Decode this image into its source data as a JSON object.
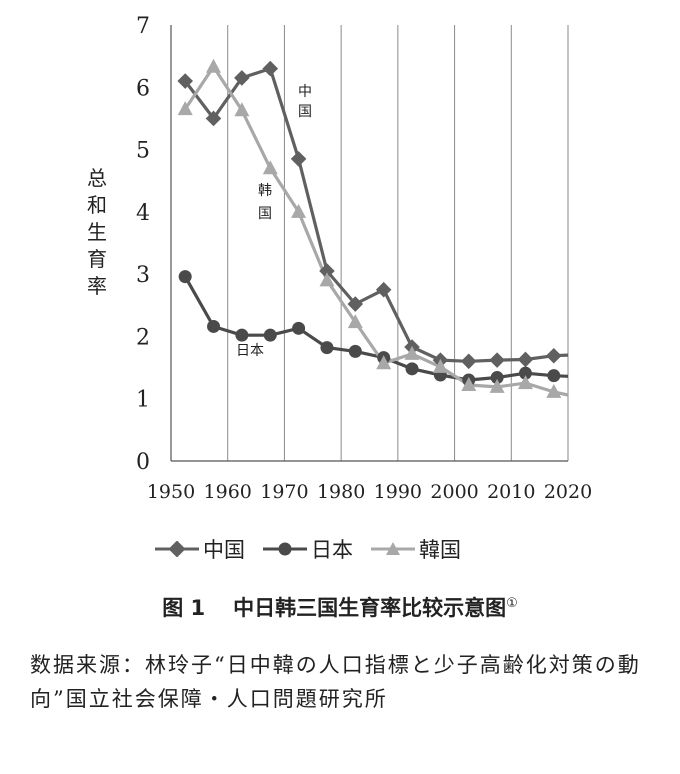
{
  "chart_data": {
    "type": "line",
    "xlabel": "",
    "ylabel": "总和生育率",
    "xlim": [
      1950,
      2020
    ],
    "ylim": [
      0,
      7
    ],
    "x_ticks": [
      "1950",
      "1960",
      "1970",
      "1980",
      "1990",
      "2000",
      "2010",
      "2020"
    ],
    "y_ticks": [
      "0",
      "1",
      "2",
      "3",
      "4",
      "5",
      "6",
      "7"
    ],
    "grid": "vertical",
    "legend_position": "bottom",
    "series": [
      {
        "name": "中国",
        "color": "#606060",
        "marker": "diamond",
        "label": "中国",
        "x": [
          1952.5,
          1957.5,
          1962.5,
          1967.5,
          1972.5,
          1977.5,
          1982.5,
          1987.5,
          1992.5,
          1997.5,
          2002.5,
          2007.5,
          2012.5,
          2017.5,
          2020
        ],
        "y": [
          6.1,
          5.5,
          6.15,
          6.3,
          4.85,
          3.05,
          2.52,
          2.75,
          1.83,
          1.62,
          1.6,
          1.62,
          1.63,
          1.69,
          1.7
        ]
      },
      {
        "name": "日本",
        "color": "#4a4a4a",
        "marker": "circle",
        "label": "日本",
        "x": [
          1952.5,
          1957.5,
          1962.5,
          1967.5,
          1972.5,
          1977.5,
          1982.5,
          1987.5,
          1992.5,
          1997.5,
          2002.5,
          2007.5,
          2012.5,
          2017.5,
          2020
        ],
        "y": [
          2.96,
          2.16,
          2.02,
          2.02,
          2.13,
          1.82,
          1.76,
          1.66,
          1.48,
          1.38,
          1.3,
          1.34,
          1.41,
          1.37,
          1.36
        ]
      },
      {
        "name": "韓国",
        "color": "#a8a8a8",
        "marker": "triangle",
        "label": "韩国",
        "x": [
          1952.5,
          1957.5,
          1962.5,
          1967.5,
          1972.5,
          1977.5,
          1982.5,
          1987.5,
          1992.5,
          1997.5,
          2002.5,
          2007.5,
          2012.5,
          2017.5,
          2020
        ],
        "y": [
          5.65,
          6.33,
          5.63,
          4.7,
          4.0,
          2.9,
          2.23,
          1.57,
          1.72,
          1.51,
          1.22,
          1.19,
          1.25,
          1.11,
          1.06
        ]
      }
    ],
    "annotations": [
      {
        "series": "中国",
        "text": "中国"
      },
      {
        "series": "韓国",
        "text": "韩国"
      },
      {
        "series": "日本",
        "text": "日本"
      }
    ]
  },
  "caption": {
    "number": "图 1",
    "text": "中日韩三国生育率比较示意图",
    "note_mark": "①"
  },
  "source": {
    "text": "数据来源：林玲子“日中韓の人口指標と少子高齢化対策の動向”国立社会保障・人口問題研究所"
  }
}
